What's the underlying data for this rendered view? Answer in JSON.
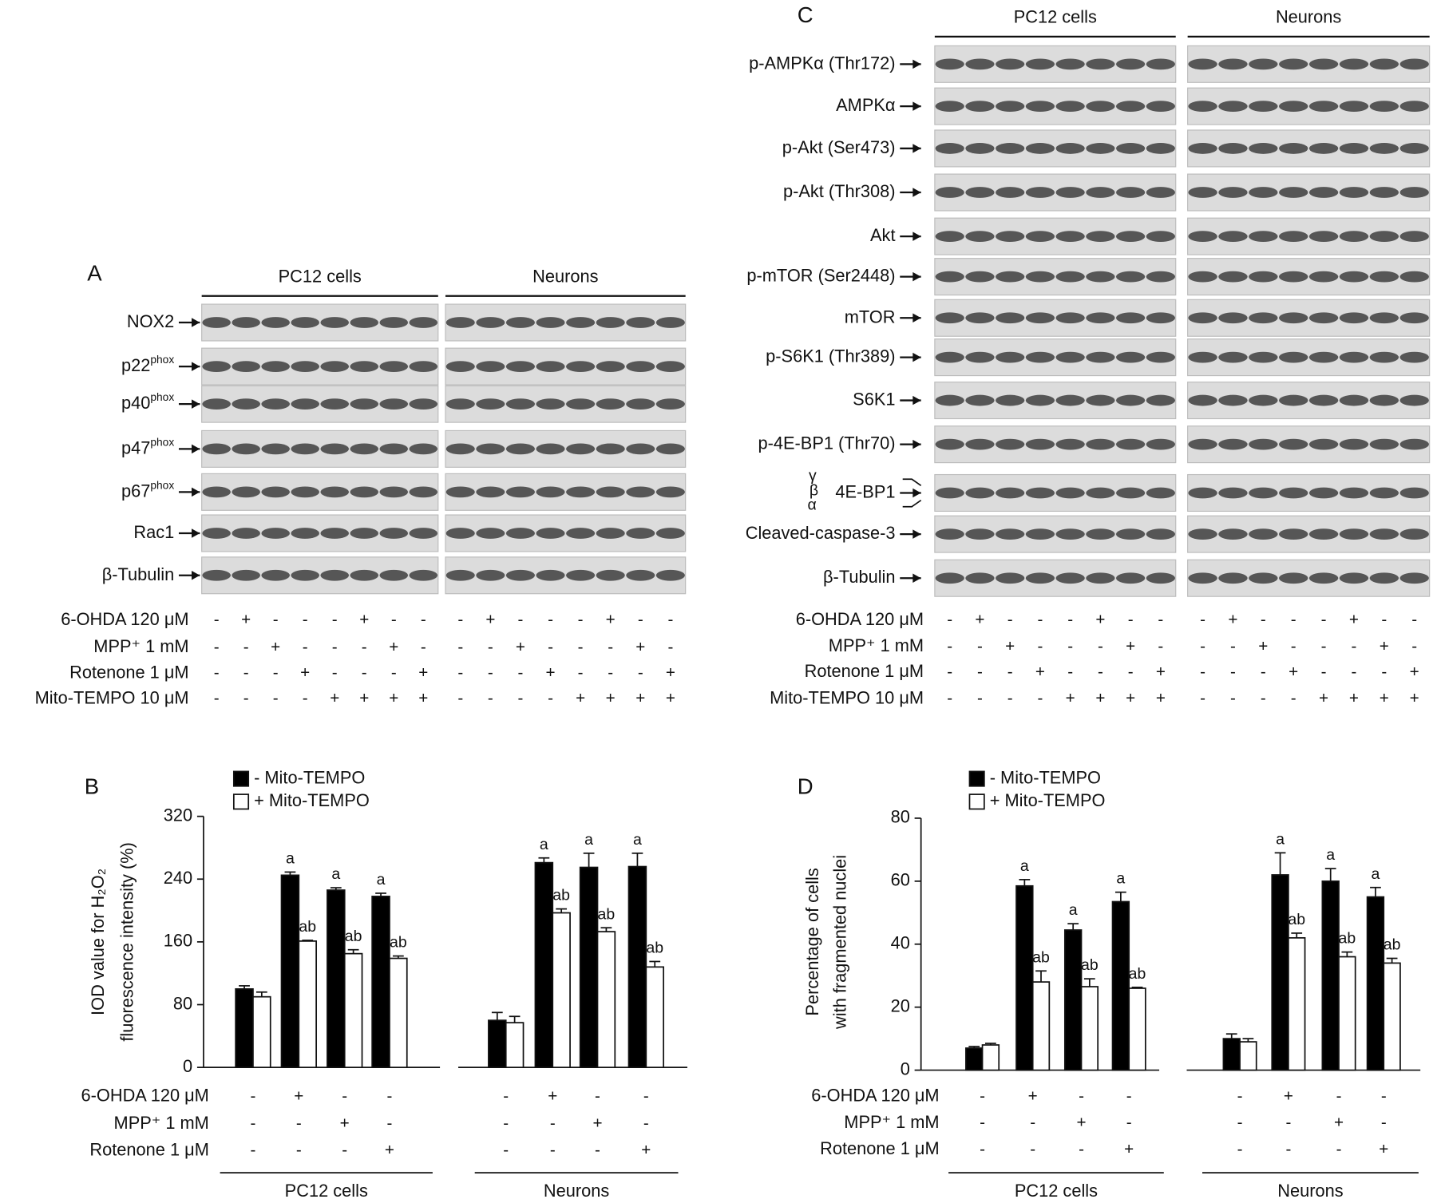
{
  "panel_a": {
    "label": "A",
    "groups": [
      "PC12 cells",
      "Neurons"
    ],
    "rows": [
      {
        "label": "NOX2"
      },
      {
        "label": "p22",
        "sup": "phox"
      },
      {
        "label": "p40",
        "sup": "phox"
      },
      {
        "label": "p47",
        "sup": "phox"
      },
      {
        "label": "p67",
        "sup": "phox"
      },
      {
        "label": "Rac1"
      },
      {
        "label": "β-Tubulin"
      }
    ],
    "conditions": [
      {
        "label": "6-OHDA 120 μM",
        "values": [
          "-",
          "+",
          "-",
          "-",
          "-",
          "+",
          "-",
          "-",
          "-",
          "+",
          "-",
          "-",
          "-",
          "+",
          "-",
          "-"
        ]
      },
      {
        "label": "MPP⁺ 1 mM",
        "values": [
          "-",
          "-",
          "+",
          "-",
          "-",
          "-",
          "+",
          "-",
          "-",
          "-",
          "+",
          "-",
          "-",
          "-",
          "+",
          "-"
        ]
      },
      {
        "label": "Rotenone 1 μM",
        "values": [
          "-",
          "-",
          "-",
          "+",
          "-",
          "-",
          "-",
          "+",
          "-",
          "-",
          "-",
          "+",
          "-",
          "-",
          "-",
          "+"
        ]
      },
      {
        "label": "Mito-TEMPO 10 μM",
        "values": [
          "-",
          "-",
          "-",
          "-",
          "+",
          "+",
          "+",
          "+",
          "-",
          "-",
          "-",
          "-",
          "+",
          "+",
          "+",
          "+"
        ]
      }
    ]
  },
  "panel_c": {
    "label": "C",
    "groups": [
      "PC12 cells",
      "Neurons"
    ],
    "rows": [
      {
        "label": "p-AMPKα (Thr172)"
      },
      {
        "label": "AMPKα"
      },
      {
        "label": "p-Akt (Ser473)"
      },
      {
        "label": "p-Akt (Thr308)"
      },
      {
        "label": "Akt"
      },
      {
        "label": "p-mTOR (Ser2448)"
      },
      {
        "label": "mTOR"
      },
      {
        "label": "p-S6K1 (Thr389)"
      },
      {
        "label": "S6K1"
      },
      {
        "label": "p-4E-BP1 (Thr70)"
      },
      {
        "label": "4E-BP1",
        "isoforms": [
          "γ",
          "β",
          "α"
        ]
      },
      {
        "label": "Cleaved-caspase-3"
      },
      {
        "label": "β-Tubulin"
      }
    ],
    "conditions": [
      {
        "label": "6-OHDA 120 μM",
        "values": [
          "-",
          "+",
          "-",
          "-",
          "-",
          "+",
          "-",
          "-",
          "-",
          "+",
          "-",
          "-",
          "-",
          "+",
          "-",
          "-"
        ]
      },
      {
        "label": "MPP⁺ 1 mM",
        "values": [
          "-",
          "-",
          "+",
          "-",
          "-",
          "-",
          "+",
          "-",
          "-",
          "-",
          "+",
          "-",
          "-",
          "-",
          "+",
          "-"
        ]
      },
      {
        "label": "Rotenone 1 μM",
        "values": [
          "-",
          "-",
          "-",
          "+",
          "-",
          "-",
          "-",
          "+",
          "-",
          "-",
          "-",
          "+",
          "-",
          "-",
          "-",
          "+"
        ]
      },
      {
        "label": "Mito-TEMPO 10 μM",
        "values": [
          "-",
          "-",
          "-",
          "-",
          "+",
          "+",
          "+",
          "+",
          "-",
          "-",
          "-",
          "-",
          "+",
          "+",
          "+",
          "+"
        ]
      }
    ]
  },
  "chart_data": [
    {
      "type": "bar",
      "panel_label": "B",
      "y_label": [
        "IOD value for H₂O₂",
        "fluorescence intensity (%)"
      ],
      "groups": [
        "PC12 cells",
        "Neurons"
      ],
      "ylim": [
        0,
        320
      ],
      "yticks": [
        0,
        80,
        160,
        240,
        320
      ],
      "series": [
        {
          "name": "- Mito-TEMPO",
          "color": "#000000",
          "values": [
            100,
            245,
            226,
            218,
            60,
            261,
            255,
            256
          ],
          "errors": [
            4,
            4,
            3,
            4,
            10,
            6,
            18,
            17
          ],
          "annotations": [
            null,
            "a",
            "a",
            "a",
            null,
            "a",
            "a",
            "a"
          ]
        },
        {
          "name": "+ Mito-TEMPO",
          "color": "#ffffff",
          "values": [
            90,
            161,
            145,
            139,
            57,
            197,
            173,
            128
          ],
          "errors": [
            6,
            1,
            5,
            3,
            8,
            5,
            5,
            7
          ],
          "annotations": [
            null,
            "ab",
            "ab",
            "ab",
            null,
            "ab",
            "ab",
            "ab"
          ]
        }
      ],
      "conditions": [
        {
          "label": "6-OHDA 120 μM",
          "values": [
            "-",
            "+",
            "-",
            "-",
            "-",
            "+",
            "-",
            "-"
          ]
        },
        {
          "label": "MPP⁺ 1 mM",
          "values": [
            "-",
            "-",
            "+",
            "-",
            "-",
            "-",
            "+",
            "-"
          ]
        },
        {
          "label": "Rotenone 1 μM",
          "values": [
            "-",
            "-",
            "-",
            "+",
            "-",
            "-",
            "-",
            "+"
          ]
        }
      ]
    },
    {
      "type": "bar",
      "panel_label": "D",
      "y_label": [
        "Percentage of cells",
        "with fragmented nuclei"
      ],
      "groups": [
        "PC12 cells",
        "Neurons"
      ],
      "ylim": [
        0,
        80
      ],
      "yticks": [
        0,
        20,
        40,
        60,
        80
      ],
      "series": [
        {
          "name": "- Mito-TEMPO",
          "color": "#000000",
          "values": [
            7,
            58.5,
            44.5,
            53.5,
            10,
            62,
            60,
            55
          ],
          "errors": [
            0.5,
            2,
            2,
            3,
            1.5,
            7,
            4,
            3
          ],
          "annotations": [
            null,
            "a",
            "a",
            "a",
            null,
            "a",
            "a",
            "a"
          ]
        },
        {
          "name": "+ Mito-TEMPO",
          "color": "#ffffff",
          "values": [
            8,
            28,
            26.5,
            26,
            9,
            42,
            36,
            34
          ],
          "errors": [
            0.5,
            3.5,
            2.5,
            0.3,
            1,
            1.5,
            1.5,
            1.5
          ],
          "annotations": [
            null,
            "ab",
            "ab",
            "ab",
            null,
            "ab",
            "ab",
            "ab"
          ]
        }
      ],
      "conditions": [
        {
          "label": "6-OHDA 120 μM",
          "values": [
            "-",
            "+",
            "-",
            "-",
            "-",
            "+",
            "-",
            "-"
          ]
        },
        {
          "label": "MPP⁺ 1 mM",
          "values": [
            "-",
            "-",
            "+",
            "-",
            "-",
            "-",
            "+",
            "-"
          ]
        },
        {
          "label": "Rotenone 1 μM",
          "values": [
            "-",
            "-",
            "-",
            "+",
            "-",
            "-",
            "-",
            "+"
          ]
        }
      ]
    }
  ]
}
